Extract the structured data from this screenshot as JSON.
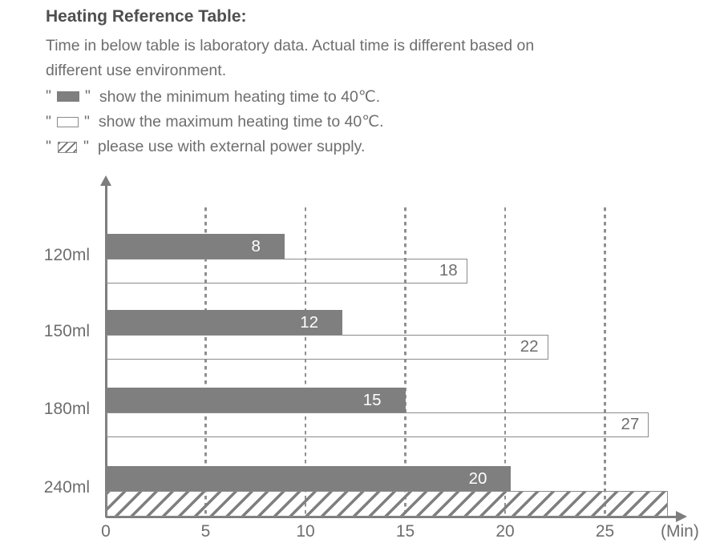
{
  "header": {
    "title": "Heating Reference Table:",
    "description_lines": [
      "Time in below table is laboratory data. Actual time is different based on",
      "different use environment."
    ],
    "quote_mark": "\"",
    "legend": [
      {
        "icon": "minimum-swatch",
        "label": "show the minimum heating time to 40℃."
      },
      {
        "icon": "maximum-swatch",
        "label": "show the maximum heating time to 40℃."
      },
      {
        "icon": "external-power-swatch",
        "label": "please use with external power supply."
      }
    ]
  },
  "chart_data": {
    "type": "bar",
    "orientation": "horizontal",
    "title": "Heating Reference Table",
    "xlabel": "(Min)",
    "ylabel": "",
    "categories": [
      "120ml",
      "150ml",
      "180ml",
      "240ml"
    ],
    "series": [
      {
        "name": "minimum heating time to 40℃",
        "style": "solid-gray",
        "values": [
          8,
          12,
          15,
          20
        ]
      },
      {
        "name": "maximum heating time to 40℃",
        "style": "outline",
        "values": [
          18,
          22,
          27,
          null
        ]
      },
      {
        "name": "use with external power supply",
        "style": "hatched",
        "values": [
          null,
          null,
          null,
          null
        ]
      }
    ],
    "external_power_rows": [
      "240ml"
    ],
    "x_ticks": [
      0,
      5,
      10,
      15,
      20,
      25
    ],
    "xlim": [
      0,
      28.5
    ],
    "grid": "dashed-vertical",
    "legend_position": "above-chart",
    "rows": [
      {
        "category": "120ml",
        "min_value": 8,
        "min_drawn": 8.95,
        "max_value": 18,
        "max_drawn": 18.1,
        "lower_style": "outline"
      },
      {
        "category": "150ml",
        "min_value": 12,
        "min_drawn": 11.85,
        "max_value": 22,
        "max_drawn": 22.15,
        "lower_style": "outline"
      },
      {
        "category": "180ml",
        "min_value": 15,
        "min_drawn": 15.0,
        "max_value": 27,
        "max_drawn": 27.2,
        "lower_style": "outline"
      },
      {
        "category": "240ml",
        "min_value": 20,
        "min_drawn": 20.3,
        "max_value": null,
        "max_drawn": 28.15,
        "lower_style": "hatched"
      }
    ]
  },
  "colors": {
    "title_gray": "#4f4f4f",
    "text_gray": "#6e6e6e",
    "bar_gray": "#7f7f7f",
    "outline_gray": "#8a8a8a",
    "gridline_gray": "#8f8f8f",
    "axis_gray": "#7d7d7d",
    "bar_label_white": "#ffffff"
  }
}
